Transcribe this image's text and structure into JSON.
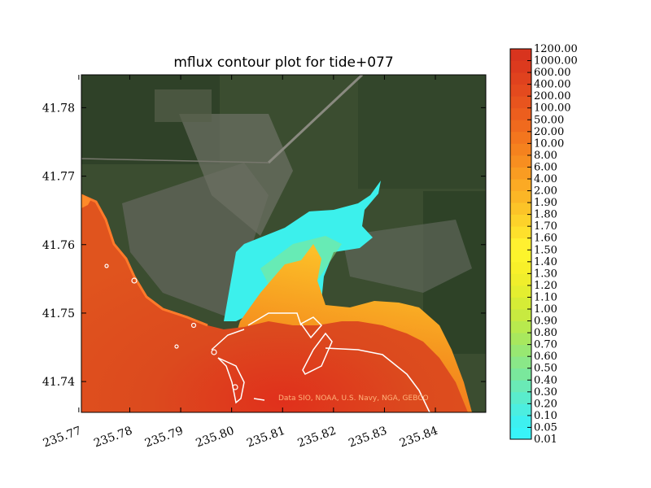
{
  "chart_data": {
    "type": "heatmap",
    "title": "mflux contour plot for tide+077",
    "xlabel": "",
    "ylabel": "",
    "xlim": [
      235.7705,
      235.8499
    ],
    "ylim": [
      41.7355,
      41.7848
    ],
    "x_ticks": [
      "235.77",
      "235.78",
      "235.79",
      "235.80",
      "235.81",
      "235.82",
      "235.83",
      "235.84"
    ],
    "y_ticks": [
      "41.74",
      "41.75",
      "41.76",
      "41.77",
      "41.78"
    ],
    "colorbar_levels": [
      "0.01",
      "0.05",
      "0.10",
      "0.20",
      "0.30",
      "0.40",
      "0.50",
      "0.60",
      "0.70",
      "0.80",
      "0.90",
      "1.00",
      "1.10",
      "1.20",
      "1.30",
      "1.40",
      "1.50",
      "1.60",
      "1.70",
      "1.80",
      "1.90",
      "2.00",
      "4.00",
      "6.00",
      "8.00",
      "10.00",
      "20.00",
      "50.00",
      "100.00",
      "200.00",
      "400.00",
      "600.00",
      "1000.00",
      "1200.00"
    ],
    "colorbar_colors": [
      "#38f4f8",
      "#3ef0f0",
      "#4ceee0",
      "#5aeccc",
      "#6aeab6",
      "#7ae89c",
      "#8ae888",
      "#98e872",
      "#a8e85e",
      "#b8ea4e",
      "#c8ea40",
      "#d6ec36",
      "#e4ee30",
      "#f0ee2c",
      "#f8f02a",
      "#fcf42c",
      "#fff030",
      "#fee02c",
      "#fdd22a",
      "#fcc428",
      "#fbb626",
      "#fbaa24",
      "#f99c22",
      "#f78e20",
      "#f5821e",
      "#f3761e",
      "#f06a1e",
      "#ec5e1e",
      "#e8541e",
      "#e44a1e",
      "#e0421e",
      "#dc3a1e",
      "#d8341e"
    ],
    "basemap_attribution": "Data SIO, NOAA, U.S. Navy, NGA, GEBCO",
    "grid": false
  }
}
